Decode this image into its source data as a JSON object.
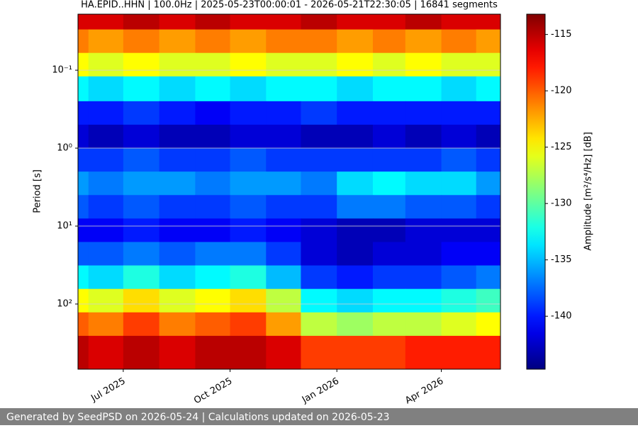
{
  "chart_data": {
    "type": "heatmap",
    "title": "HA.EPID..HHN | 100.0Hz | 2025-05-23T00:00:01 - 2026-05-21T22:30:05 | 16841 segments",
    "ylabel": "Period [s]",
    "x": [
      "2025-05",
      "2025-06",
      "2025-07",
      "2025-08",
      "2025-09",
      "2025-10",
      "2025-11",
      "2025-12",
      "2026-01",
      "2026-02",
      "2026-03",
      "2026-04",
      "2026-05"
    ],
    "y_bins": [
      0.0191,
      0.03,
      0.06,
      0.12,
      0.25,
      0.5,
      1,
      2,
      4,
      8,
      16,
      32,
      64,
      128,
      256,
      686
    ],
    "z": [
      [
        -116,
        -116,
        -115,
        -116,
        -115,
        -116,
        -116,
        -115,
        -116,
        -116,
        -115,
        -116,
        -116
      ],
      [
        -121,
        -122,
        -121,
        -122,
        -121,
        -122,
        -121,
        -121,
        -122,
        -121,
        -122,
        -121,
        -122
      ],
      [
        -125,
        -126,
        -125,
        -126,
        -126,
        -125,
        -126,
        -126,
        -125,
        -126,
        -125,
        -126,
        -126
      ],
      [
        -133,
        -134,
        -133,
        -134,
        -133,
        -134,
        -133,
        -133,
        -134,
        -133,
        -133,
        -134,
        -133
      ],
      [
        -140,
        -140,
        -139,
        -140,
        -141,
        -140,
        -140,
        -139,
        -140,
        -140,
        -140,
        -140,
        -140
      ],
      [
        -142,
        -143,
        -142,
        -143,
        -143,
        -142,
        -142,
        -143,
        -143,
        -142,
        -143,
        -142,
        -143
      ],
      [
        -139,
        -139,
        -138,
        -139,
        -139,
        -138,
        -139,
        -139,
        -139,
        -139,
        -139,
        -138,
        -139
      ],
      [
        -136,
        -137,
        -136,
        -136,
        -137,
        -136,
        -136,
        -137,
        -134,
        -133,
        -134,
        -134,
        -136
      ],
      [
        -138,
        -139,
        -138,
        -139,
        -139,
        -138,
        -139,
        -139,
        -137,
        -137,
        -138,
        -138,
        -139
      ],
      [
        -141,
        -141,
        -140,
        -141,
        -141,
        -140,
        -141,
        -142,
        -143,
        -143,
        -142,
        -142,
        -142
      ],
      [
        -138,
        -138,
        -137,
        -138,
        -137,
        -137,
        -139,
        -142,
        -143,
        -142,
        -142,
        -141,
        -141
      ],
      [
        -133,
        -134,
        -132,
        -134,
        -133,
        -132,
        -135,
        -139,
        -140,
        -139,
        -139,
        -138,
        -137
      ],
      [
        -125,
        -126,
        -124,
        -126,
        -125,
        -124,
        -127,
        -133,
        -134,
        -133,
        -133,
        -132,
        -131
      ],
      [
        -120,
        -121,
        -119,
        -121,
        -120,
        -119,
        -122,
        -127,
        -128,
        -127,
        -127,
        -126,
        -125
      ],
      [
        -115,
        -116,
        -115,
        -116,
        -115,
        -115,
        -116,
        -119,
        -119,
        -119,
        -118,
        -118,
        -118
      ]
    ],
    "xlim": [
      "2025-05-23T00:00:01",
      "2026-05-21T22:30:05"
    ],
    "xticks": [
      {
        "value": "2025-07",
        "label": "Jul 2025"
      },
      {
        "value": "2025-10",
        "label": "Oct 2025"
      },
      {
        "value": "2026-01",
        "label": "Jan 2026"
      },
      {
        "value": "2026-04",
        "label": "Apr 2026"
      }
    ],
    "ylim": [
      0.0191,
      686
    ],
    "yticks": [
      {
        "value": 0.1,
        "label": "10⁻¹"
      },
      {
        "value": 1,
        "label": "10⁰"
      },
      {
        "value": 10,
        "label": "10¹"
      },
      {
        "value": 100,
        "label": "10²"
      }
    ],
    "log_y": true,
    "invert_y": true,
    "grid": true,
    "colorscale": "jet",
    "colorbar": {
      "label": "Amplitude [m²/s⁴/Hz] [dB]",
      "lim": [
        -144.7,
        -113.2
      ],
      "ticks": [
        -115,
        -120,
        -125,
        -130,
        -135,
        -140
      ]
    }
  },
  "footer": {
    "text": "Generated by SeedPSD on 2026-05-24 | Calculations updated on 2026-05-23"
  }
}
